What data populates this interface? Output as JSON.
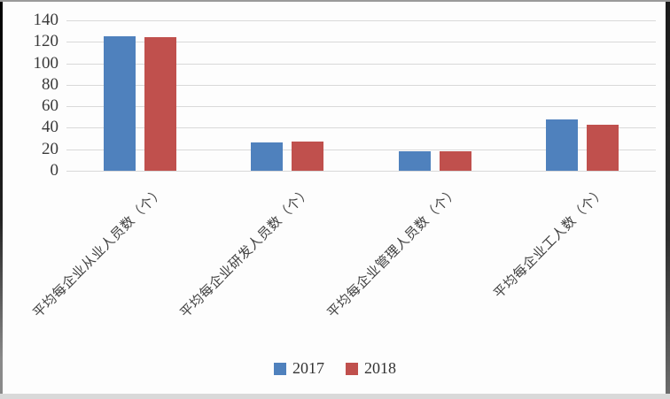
{
  "chart_data": {
    "type": "bar",
    "title": "",
    "xlabel": "",
    "ylabel": "",
    "categories": [
      "平均每企业从业人员数（个）",
      "平均每企业研发人员数（个）",
      "平均每企业管理人员数（个）",
      "平均每企业工人数（个）"
    ],
    "series": [
      {
        "name": "2017",
        "color": "#4f81bd",
        "values": [
          125,
          26,
          18,
          48
        ]
      },
      {
        "name": "2018",
        "color": "#c0504d",
        "values": [
          124,
          27,
          18,
          43
        ]
      }
    ],
    "ylim": [
      0,
      140
    ],
    "yticks": [
      0,
      20,
      40,
      60,
      80,
      100,
      120,
      140
    ],
    "grid": true,
    "legend_position": "bottom"
  },
  "colors": {
    "series_2017": "#4f81bd",
    "series_2018": "#c0504d",
    "gridline": "#d9d9d9",
    "axis_text": "#3a3a3a",
    "category_text": "#404040"
  }
}
